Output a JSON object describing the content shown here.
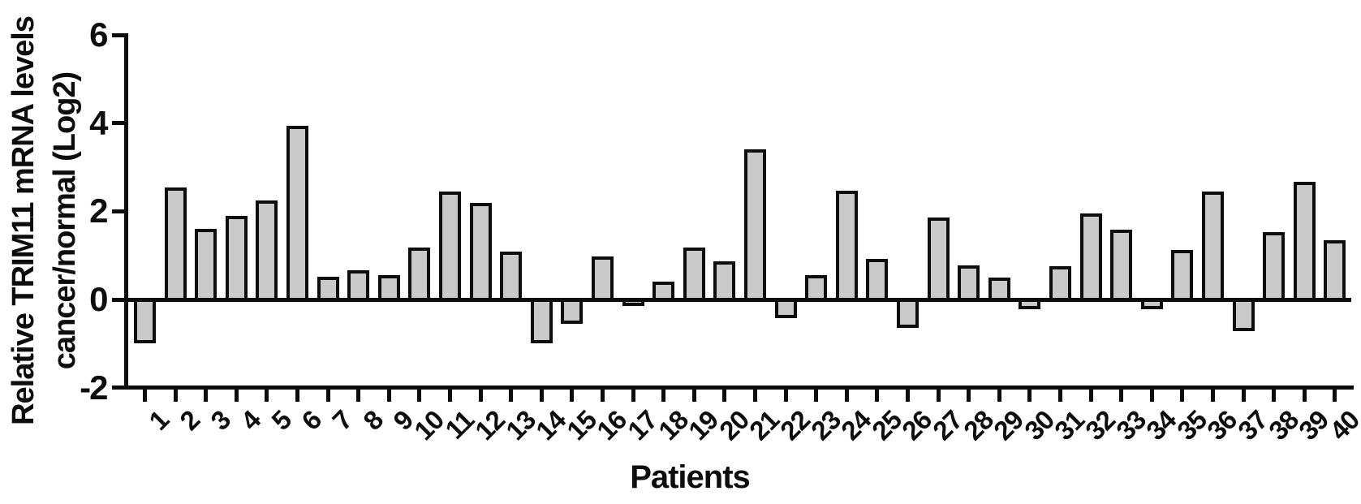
{
  "figure": {
    "background": "#ffffff",
    "axis_color": "#0d0d0d",
    "text_color": "#0d0d0d"
  },
  "chart_data": {
    "type": "bar",
    "title": "",
    "xlabel": "Patients",
    "ylabel_line1": "Relative TRIM11 mRNA levels",
    "ylabel_line2": "cancer/normal (Log2)",
    "categories": [
      "1",
      "2",
      "3",
      "4",
      "5",
      "6",
      "7",
      "8",
      "9",
      "10",
      "11",
      "12",
      "13",
      "14",
      "15",
      "16",
      "17",
      "18",
      "19",
      "20",
      "21",
      "22",
      "23",
      "24",
      "25",
      "26",
      "27",
      "28",
      "29",
      "30",
      "31",
      "32",
      "33",
      "34",
      "35",
      "36",
      "37",
      "38",
      "39",
      "40"
    ],
    "values": [
      -1.0,
      2.55,
      1.6,
      1.9,
      2.25,
      3.95,
      0.52,
      0.67,
      0.55,
      1.17,
      2.45,
      2.2,
      1.08,
      -1.0,
      -0.55,
      0.97,
      -0.15,
      0.4,
      1.18,
      0.87,
      3.4,
      -0.42,
      0.55,
      2.47,
      0.92,
      -0.64,
      1.86,
      0.78,
      0.5,
      -0.23,
      0.75,
      1.95,
      1.58,
      -0.23,
      1.12,
      2.45,
      -0.72,
      1.52,
      2.67,
      1.34
    ],
    "ylim": [
      -2,
      6
    ],
    "yticks": [
      6,
      4,
      2,
      0,
      -2
    ],
    "baseline": 0,
    "grid": false,
    "legend": null,
    "bar_fill": "#c9c9c9",
    "bar_border": "#0d0d0d"
  }
}
